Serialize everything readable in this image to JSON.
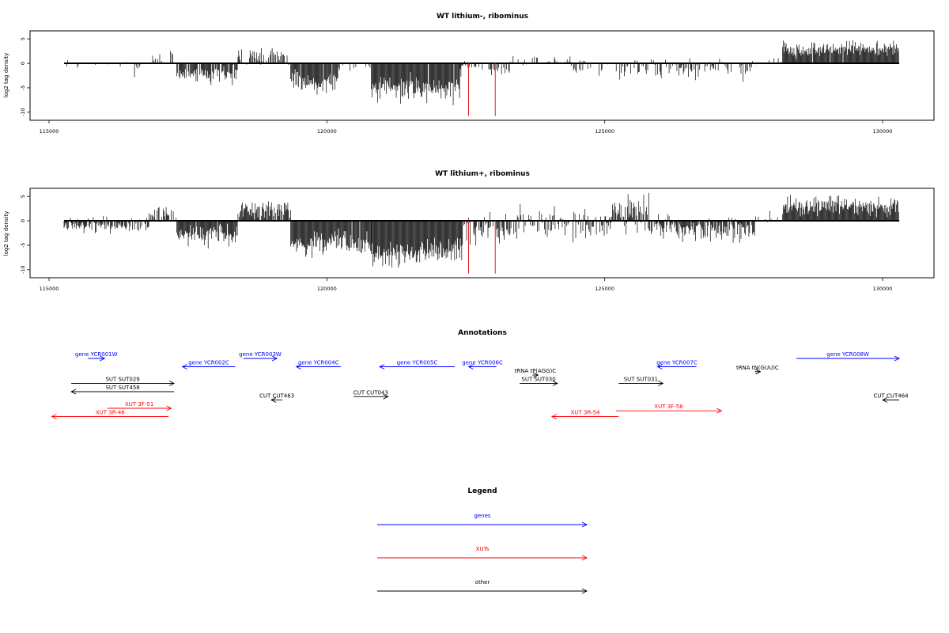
{
  "chart_data": [
    {
      "type": "bar",
      "title": "WT lithium-, ribominus",
      "ylabel": "log2 tag density",
      "xlabel": "",
      "xlim": [
        115000,
        130300
      ],
      "ylim": [
        -11,
        6
      ],
      "xticks": [
        "115000",
        "120000",
        "125000",
        "130000"
      ],
      "yticks": [
        "5",
        "0",
        "-5",
        "-10"
      ],
      "grid": false,
      "markers": [
        122550,
        123030
      ],
      "marker_color": "#e02020",
      "bar_color": "#000000",
      "segments": [
        {
          "x_start": 115270,
          "x_end": 116000,
          "mean": -0.4,
          "spread": 0.8,
          "density": 0.15
        },
        {
          "x_start": 116000,
          "x_end": 116800,
          "mean": -0.8,
          "spread": 1.2,
          "density": 0.2
        },
        {
          "x_start": 116800,
          "x_end": 117300,
          "mean": 1.2,
          "spread": 1.6,
          "density": 0.3
        },
        {
          "x_start": 117300,
          "x_end": 118400,
          "mean": -2.2,
          "spread": 1.4,
          "density": 0.85
        },
        {
          "x_start": 118400,
          "x_end": 119350,
          "mean": 1.6,
          "spread": 1.4,
          "density": 0.45
        },
        {
          "x_start": 119350,
          "x_end": 120200,
          "mean": -3.8,
          "spread": 1.6,
          "density": 0.95
        },
        {
          "x_start": 120200,
          "x_end": 120800,
          "mean": -0.5,
          "spread": 1.0,
          "density": 0.2
        },
        {
          "x_start": 120800,
          "x_end": 122400,
          "mean": -5.0,
          "spread": 2.0,
          "density": 0.98
        },
        {
          "x_start": 122400,
          "x_end": 123300,
          "mean": -1.0,
          "spread": 1.4,
          "density": 0.35
        },
        {
          "x_start": 123300,
          "x_end": 124400,
          "mean": 0.5,
          "spread": 1.2,
          "density": 0.25
        },
        {
          "x_start": 124400,
          "x_end": 125300,
          "mean": -1.2,
          "spread": 1.4,
          "density": 0.3
        },
        {
          "x_start": 125300,
          "x_end": 127700,
          "mean": -1.0,
          "spread": 1.6,
          "density": 0.45
        },
        {
          "x_start": 127700,
          "x_end": 128200,
          "mean": 0.5,
          "spread": 1.0,
          "density": 0.15
        },
        {
          "x_start": 128200,
          "x_end": 130300,
          "mean": 2.8,
          "spread": 1.2,
          "density": 0.97
        }
      ]
    },
    {
      "type": "bar",
      "title": "WT lithium+, ribominus",
      "ylabel": "log2 tag density",
      "xlabel": "",
      "xlim": [
        115000,
        130300
      ],
      "ylim": [
        -11,
        6
      ],
      "xticks": [
        "115000",
        "120000",
        "125000",
        "130000"
      ],
      "yticks": [
        "5",
        "0",
        "-5",
        "-10"
      ],
      "grid": false,
      "markers": [
        122550,
        123030
      ],
      "marker_color": "#e02020",
      "bar_color": "#000000",
      "segments": [
        {
          "x_start": 115270,
          "x_end": 116800,
          "mean": -1.0,
          "spread": 1.2,
          "density": 0.75
        },
        {
          "x_start": 116800,
          "x_end": 117300,
          "mean": 1.5,
          "spread": 2.0,
          "density": 0.6
        },
        {
          "x_start": 117300,
          "x_end": 118400,
          "mean": -2.8,
          "spread": 1.8,
          "density": 0.95
        },
        {
          "x_start": 118400,
          "x_end": 119350,
          "mean": 2.0,
          "spread": 1.6,
          "density": 0.85
        },
        {
          "x_start": 119350,
          "x_end": 120800,
          "mean": -4.8,
          "spread": 2.0,
          "density": 0.98
        },
        {
          "x_start": 120800,
          "x_end": 122450,
          "mean": -6.5,
          "spread": 2.2,
          "density": 1.0
        },
        {
          "x_start": 122450,
          "x_end": 123300,
          "mean": -1.8,
          "spread": 2.2,
          "density": 0.75
        },
        {
          "x_start": 123300,
          "x_end": 125100,
          "mean": -0.5,
          "spread": 2.4,
          "density": 0.8
        },
        {
          "x_start": 125100,
          "x_end": 125800,
          "mean": 1.5,
          "spread": 2.6,
          "density": 0.85
        },
        {
          "x_start": 125800,
          "x_end": 127700,
          "mean": -1.5,
          "spread": 2.0,
          "density": 0.9
        },
        {
          "x_start": 127700,
          "x_end": 128200,
          "mean": 0.5,
          "spread": 1.0,
          "density": 0.2
        },
        {
          "x_start": 128200,
          "x_end": 130300,
          "mean": 3.0,
          "spread": 1.6,
          "density": 1.0
        }
      ]
    },
    {
      "type": "annotation_track",
      "title": "Annotations",
      "xlim": [
        115000,
        130300
      ],
      "colors": {
        "gene": "#0000ff",
        "xut": "#ff0000",
        "other": "#000000"
      },
      "features": [
        {
          "label": "gene YCR001W",
          "kind": "gene",
          "strand": "+",
          "start": 115700,
          "end": 116000,
          "row": 0
        },
        {
          "label": "gene YCR002C",
          "kind": "gene",
          "strand": "-",
          "start": 117400,
          "end": 118350,
          "row": 1
        },
        {
          "label": "gene YCR003W",
          "kind": "gene",
          "strand": "+",
          "start": 118500,
          "end": 119100,
          "row": 0
        },
        {
          "label": "gene YCR004C",
          "kind": "gene",
          "strand": "-",
          "start": 119450,
          "end": 120250,
          "row": 1
        },
        {
          "label": "gene YCR005C",
          "kind": "gene",
          "strand": "-",
          "start": 120950,
          "end": 122300,
          "row": 1
        },
        {
          "label": "gene YCR006C",
          "kind": "gene",
          "strand": "-",
          "start": 122550,
          "end": 123050,
          "row": 1
        },
        {
          "label": "gene YCR007C",
          "kind": "gene",
          "strand": "-",
          "start": 125950,
          "end": 126650,
          "row": 1
        },
        {
          "label": "gene YCR008W",
          "kind": "gene",
          "strand": "+",
          "start": 128450,
          "end": 130300,
          "row": 0
        },
        {
          "label": "tRNA tP(AGG)C",
          "kind": "other",
          "strand": "+",
          "start": 123700,
          "end": 123800,
          "row": 2
        },
        {
          "label": "tRNA tN(GUU)C",
          "kind": "other",
          "strand": "+",
          "start": 127700,
          "end": 127800,
          "row": 1.6
        },
        {
          "label": "SUT SUT029",
          "kind": "other",
          "strand": "+",
          "start": 115400,
          "end": 117250,
          "row": 3
        },
        {
          "label": "SUT SUT458",
          "kind": "other",
          "strand": "-",
          "start": 115400,
          "end": 117250,
          "row": 4
        },
        {
          "label": "SUT SUT030",
          "kind": "other",
          "strand": "+",
          "start": 123470,
          "end": 124150,
          "row": 3
        },
        {
          "label": "SUT SUT031",
          "kind": "other",
          "strand": "+",
          "start": 125250,
          "end": 126050,
          "row": 3
        },
        {
          "label": "CUT CUT463",
          "kind": "other",
          "strand": "-",
          "start": 119000,
          "end": 119200,
          "row": 5
        },
        {
          "label": "CUT CUT043",
          "kind": "other",
          "strand": "+",
          "start": 120480,
          "end": 121100,
          "row": 4.6
        },
        {
          "label": "CUT CUT464",
          "kind": "other",
          "strand": "-",
          "start": 130000,
          "end": 130300,
          "row": 5
        },
        {
          "label": "XUT 3F-51",
          "kind": "xut",
          "strand": "+",
          "start": 116050,
          "end": 117200,
          "row": 6
        },
        {
          "label": "XUT 3R-46",
          "kind": "xut",
          "strand": "-",
          "start": 115050,
          "end": 117150,
          "row": 7
        },
        {
          "label": "XUT 3R-54",
          "kind": "xut",
          "strand": "-",
          "start": 124050,
          "end": 125250,
          "row": 7
        },
        {
          "label": "XUT 3F-58",
          "kind": "xut",
          "strand": "+",
          "start": 125200,
          "end": 127100,
          "row": 6.3
        }
      ]
    },
    {
      "type": "legend",
      "title": "Legend",
      "entries": [
        {
          "label": "genes",
          "color": "#0000ff"
        },
        {
          "label": "XUTs",
          "color": "#ff0000"
        },
        {
          "label": "other",
          "color": "#000000"
        }
      ]
    }
  ]
}
